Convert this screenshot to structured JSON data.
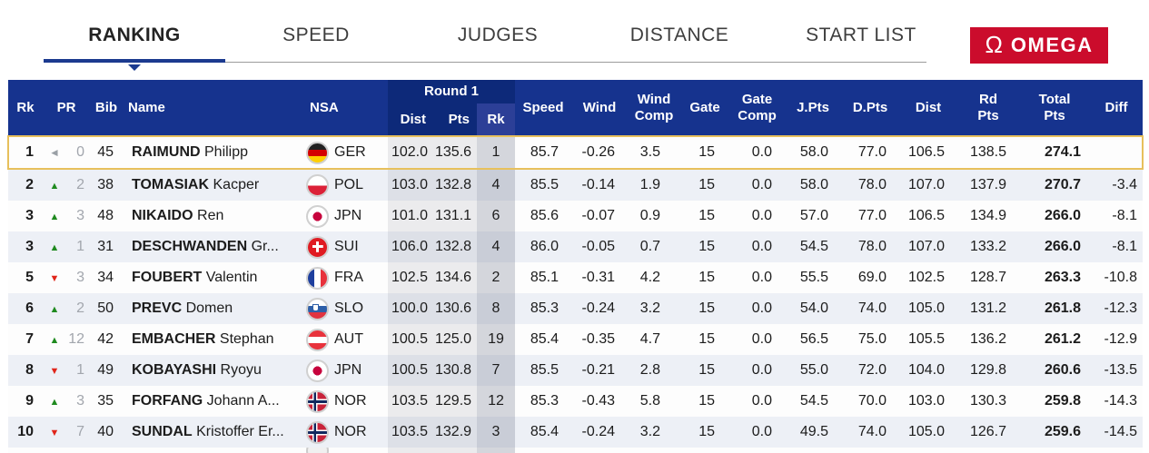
{
  "tabs": [
    {
      "label": "RANKING",
      "active": true
    },
    {
      "label": "SPEED",
      "active": false
    },
    {
      "label": "JUDGES",
      "active": false
    },
    {
      "label": "DISTANCE",
      "active": false
    },
    {
      "label": "START LIST",
      "active": false
    }
  ],
  "logo": {
    "symbol": "Ω",
    "text": "OMEGA"
  },
  "icons": {
    "up": "▲",
    "down": "▼",
    "steady": "◄"
  },
  "colors": {
    "header_blue": "#16338e",
    "round1_blue": "#0d2979",
    "round1_rk_blue": "#2c3f97",
    "accent_blue": "#1b3a8f",
    "highlight_gold": "#e7c05c",
    "omega_red": "#cb0c2c",
    "up_green": "#1f8a1f",
    "down_red": "#e0251a",
    "alt_row": "#edf0f6"
  },
  "table": {
    "group_header": "Round 1",
    "columns": {
      "rk": "Rk",
      "pr": "PR",
      "bib": "Bib",
      "name": "Name",
      "nsa": "NSA",
      "r1_dist": "Dist",
      "r1_pts": "Pts",
      "r1_rk": "Rk",
      "speed": "Speed",
      "wind": "Wind",
      "wind_comp": "Wind\nComp",
      "gate": "Gate",
      "gate_comp": "Gate\nComp",
      "jpts": "J.Pts",
      "dpts": "D.Pts",
      "dist": "Dist",
      "rd_pts": "Rd\nPts",
      "total": "Total\nPts",
      "diff": "Diff"
    },
    "rows": [
      {
        "rk": "1",
        "pr_dir": "steady",
        "pr": "0",
        "bib": "45",
        "surname": "RAIMUND",
        "given": "Philipp",
        "nsa": "GER",
        "r1_dist": "102.0",
        "r1_pts": "135.6",
        "r1_rk": "1",
        "speed": "85.7",
        "wind": "-0.26",
        "wind_comp": "3.5",
        "gate": "15",
        "gate_comp": "0.0",
        "jpts": "58.0",
        "dpts": "77.0",
        "dist": "106.5",
        "rd_pts": "138.5",
        "total": "274.1",
        "diff": "",
        "highlight": true
      },
      {
        "rk": "2",
        "pr_dir": "up",
        "pr": "2",
        "bib": "38",
        "surname": "TOMASIAK",
        "given": "Kacper",
        "nsa": "POL",
        "r1_dist": "103.0",
        "r1_pts": "132.8",
        "r1_rk": "4",
        "speed": "85.5",
        "wind": "-0.14",
        "wind_comp": "1.9",
        "gate": "15",
        "gate_comp": "0.0",
        "jpts": "58.0",
        "dpts": "78.0",
        "dist": "107.0",
        "rd_pts": "137.9",
        "total": "270.7",
        "diff": "-3.4",
        "highlight": false
      },
      {
        "rk": "3",
        "pr_dir": "up",
        "pr": "3",
        "bib": "48",
        "surname": "NIKAIDO",
        "given": "Ren",
        "nsa": "JPN",
        "r1_dist": "101.0",
        "r1_pts": "131.1",
        "r1_rk": "6",
        "speed": "85.6",
        "wind": "-0.07",
        "wind_comp": "0.9",
        "gate": "15",
        "gate_comp": "0.0",
        "jpts": "57.0",
        "dpts": "77.0",
        "dist": "106.5",
        "rd_pts": "134.9",
        "total": "266.0",
        "diff": "-8.1",
        "highlight": false
      },
      {
        "rk": "3",
        "pr_dir": "up",
        "pr": "1",
        "bib": "31",
        "surname": "DESCHWANDEN",
        "given": "Gr...",
        "nsa": "SUI",
        "r1_dist": "106.0",
        "r1_pts": "132.8",
        "r1_rk": "4",
        "speed": "86.0",
        "wind": "-0.05",
        "wind_comp": "0.7",
        "gate": "15",
        "gate_comp": "0.0",
        "jpts": "54.5",
        "dpts": "78.0",
        "dist": "107.0",
        "rd_pts": "133.2",
        "total": "266.0",
        "diff": "-8.1",
        "highlight": false
      },
      {
        "rk": "5",
        "pr_dir": "down",
        "pr": "3",
        "bib": "34",
        "surname": "FOUBERT",
        "given": "Valentin",
        "nsa": "FRA",
        "r1_dist": "102.5",
        "r1_pts": "134.6",
        "r1_rk": "2",
        "speed": "85.1",
        "wind": "-0.31",
        "wind_comp": "4.2",
        "gate": "15",
        "gate_comp": "0.0",
        "jpts": "55.5",
        "dpts": "69.0",
        "dist": "102.5",
        "rd_pts": "128.7",
        "total": "263.3",
        "diff": "-10.8",
        "highlight": false
      },
      {
        "rk": "6",
        "pr_dir": "up",
        "pr": "2",
        "bib": "50",
        "surname": "PREVC",
        "given": "Domen",
        "nsa": "SLO",
        "r1_dist": "100.0",
        "r1_pts": "130.6",
        "r1_rk": "8",
        "speed": "85.3",
        "wind": "-0.24",
        "wind_comp": "3.2",
        "gate": "15",
        "gate_comp": "0.0",
        "jpts": "54.0",
        "dpts": "74.0",
        "dist": "105.0",
        "rd_pts": "131.2",
        "total": "261.8",
        "diff": "-12.3",
        "highlight": false
      },
      {
        "rk": "7",
        "pr_dir": "up",
        "pr": "12",
        "bib": "42",
        "surname": "EMBACHER",
        "given": "Stephan",
        "nsa": "AUT",
        "r1_dist": "100.5",
        "r1_pts": "125.0",
        "r1_rk": "19",
        "speed": "85.4",
        "wind": "-0.35",
        "wind_comp": "4.7",
        "gate": "15",
        "gate_comp": "0.0",
        "jpts": "56.5",
        "dpts": "75.0",
        "dist": "105.5",
        "rd_pts": "136.2",
        "total": "261.2",
        "diff": "-12.9",
        "highlight": false
      },
      {
        "rk": "8",
        "pr_dir": "down",
        "pr": "1",
        "bib": "49",
        "surname": "KOBAYASHI",
        "given": "Ryoyu",
        "nsa": "JPN",
        "r1_dist": "100.5",
        "r1_pts": "130.8",
        "r1_rk": "7",
        "speed": "85.5",
        "wind": "-0.21",
        "wind_comp": "2.8",
        "gate": "15",
        "gate_comp": "0.0",
        "jpts": "55.0",
        "dpts": "72.0",
        "dist": "104.0",
        "rd_pts": "129.8",
        "total": "260.6",
        "diff": "-13.5",
        "highlight": false
      },
      {
        "rk": "9",
        "pr_dir": "up",
        "pr": "3",
        "bib": "35",
        "surname": "FORFANG",
        "given": "Johann A...",
        "nsa": "NOR",
        "r1_dist": "103.5",
        "r1_pts": "129.5",
        "r1_rk": "12",
        "speed": "85.3",
        "wind": "-0.43",
        "wind_comp": "5.8",
        "gate": "15",
        "gate_comp": "0.0",
        "jpts": "54.5",
        "dpts": "70.0",
        "dist": "103.0",
        "rd_pts": "130.3",
        "total": "259.8",
        "diff": "-14.3",
        "highlight": false
      },
      {
        "rk": "10",
        "pr_dir": "down",
        "pr": "7",
        "bib": "40",
        "surname": "SUNDAL",
        "given": "Kristoffer Er...",
        "nsa": "NOR",
        "r1_dist": "103.5",
        "r1_pts": "132.9",
        "r1_rk": "3",
        "speed": "85.4",
        "wind": "-0.24",
        "wind_comp": "3.2",
        "gate": "15",
        "gate_comp": "0.0",
        "jpts": "49.5",
        "dpts": "74.0",
        "dist": "105.0",
        "rd_pts": "126.7",
        "total": "259.6",
        "diff": "-14.5",
        "highlight": false
      }
    ]
  }
}
